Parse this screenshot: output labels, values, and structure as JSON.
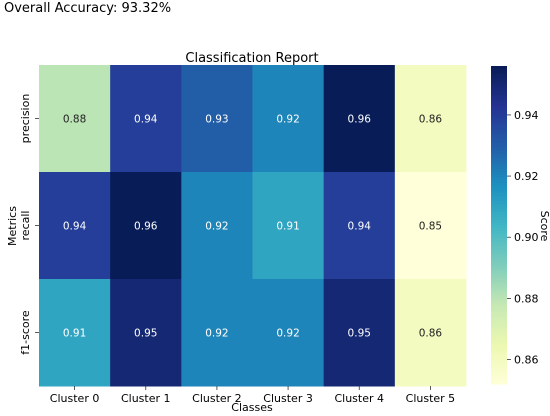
{
  "header": {
    "accuracy_text": "Overall Accuracy: 93.32%"
  },
  "chart_data": {
    "type": "heatmap",
    "title": "Classification Report",
    "xlabel": "Classes",
    "ylabel": "Metrics",
    "colorbar_label": "Score",
    "colormap": "YlGnBu",
    "columns": [
      "Cluster 0",
      "Cluster 1",
      "Cluster 2",
      "Cluster 3",
      "Cluster 4",
      "Cluster 5"
    ],
    "rows": [
      "precision",
      "recall",
      "f1-score"
    ],
    "values": [
      [
        0.88,
        0.94,
        0.93,
        0.92,
        0.96,
        0.86
      ],
      [
        0.94,
        0.96,
        0.92,
        0.91,
        0.94,
        0.85
      ],
      [
        0.91,
        0.95,
        0.92,
        0.92,
        0.95,
        0.86
      ]
    ],
    "color_range": [
      0.852,
      0.956
    ],
    "colorbar_ticks": [
      "0.86",
      "0.88",
      "0.90",
      "0.92",
      "0.94"
    ]
  }
}
